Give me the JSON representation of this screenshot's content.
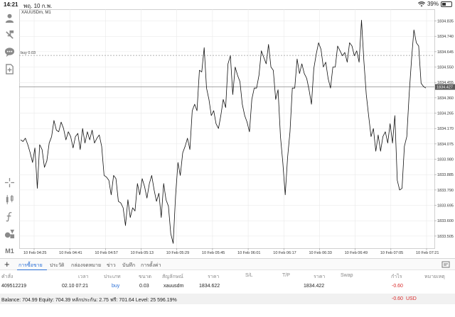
{
  "status_bar": {
    "time": "14:21",
    "date": "พฤ. 10 ก.พ.",
    "battery_percent": 39,
    "battery_label": "39%"
  },
  "toolbar": {
    "icons": [
      "account-icon",
      "trade-icon",
      "chat-icon",
      "new-order-icon",
      "crosshair-icon",
      "indicators-icon",
      "function-icon",
      "objects-icon",
      "timeframe-icon"
    ],
    "timeframe_label": "M1"
  },
  "chart": {
    "symbol_label": "XAUUSDm, M1",
    "position_label": "buy 0.03",
    "current_price_label": "1834.427",
    "colors": {
      "line": "#111111",
      "grid": "#e6e6e6",
      "bid_line": "#888888",
      "position_line": "#9a9a9a",
      "price_tag_bg": "#5a5a5a"
    }
  },
  "chart_data": {
    "type": "line",
    "title": "XAUUSDm, M1",
    "xlabel": "",
    "ylabel": "",
    "ylim": [
      1833.43,
      1834.89
    ],
    "x_ticks": [
      "10 Feb 04:25",
      "10 Feb 04:41",
      "10 Feb 04:57",
      "10 Feb 05:13",
      "10 Feb 05:29",
      "10 Feb 05:45",
      "10 Feb 06:01",
      "10 Feb 06:17",
      "10 Feb 06:33",
      "10 Feb 06:49",
      "10 Feb 07:05",
      "10 Feb 07:21"
    ],
    "y_ticks": [
      "1834.835",
      "1834.740",
      "1834.645",
      "1834.550",
      "1834.455",
      "1834.360",
      "1834.265",
      "1834.170",
      "1834.075",
      "1833.980",
      "1833.885",
      "1833.790",
      "1833.695",
      "1833.600",
      "1833.505"
    ],
    "bid_price": 1834.427,
    "position_price": 1834.622,
    "close": [
      1834.1,
      1834.09,
      1834.11,
      1834.07,
      1834.02,
      1833.96,
      1834.05,
      1833.8,
      1834.07,
      1834.04,
      1833.93,
      1833.97,
      1834.08,
      1834.12,
      1834.22,
      1834.16,
      1834.15,
      1834.21,
      1834.17,
      1834.1,
      1834.15,
      1834.12,
      1834.05,
      1834.12,
      1834.14,
      1834.04,
      1834.17,
      1834.08,
      1834.15,
      1834.1,
      1834.16,
      1834.08,
      1834.11,
      1834.13,
      1834.06,
      1833.88,
      1833.87,
      1833.85,
      1833.76,
      1833.88,
      1833.86,
      1833.72,
      1833.71,
      1833.68,
      1833.57,
      1833.73,
      1833.62,
      1833.68,
      1833.66,
      1833.83,
      1833.76,
      1833.86,
      1833.81,
      1833.74,
      1833.83,
      1833.88,
      1833.79,
      1833.72,
      1833.77,
      1833.62,
      1833.83,
      1833.73,
      1833.69,
      1833.52,
      1833.46,
      1833.75,
      1833.96,
      1833.88,
      1834.02,
      1834.06,
      1834.11,
      1834.04,
      1834.28,
      1834.32,
      1834.28,
      1834.53,
      1834.52,
      1834.67,
      1834.42,
      1834.35,
      1834.25,
      1834.28,
      1834.2,
      1834.17,
      1834.25,
      1834.35,
      1834.3,
      1834.57,
      1834.62,
      1834.38,
      1834.55,
      1834.5,
      1834.46,
      1834.32,
      1834.25,
      1834.21,
      1834.15,
      1834.35,
      1834.42,
      1834.42,
      1834.5,
      1834.65,
      1834.61,
      1834.57,
      1834.69,
      1834.55,
      1834.53,
      1834.35,
      1834.41,
      1834.12,
      1833.96,
      1833.76,
      1833.99,
      1834.15,
      1834.42,
      1834.42,
      1834.6,
      1834.51,
      1834.57,
      1834.51,
      1834.48,
      1834.41,
      1834.32,
      1834.54,
      1834.63,
      1834.7,
      1834.66,
      1834.55,
      1834.58,
      1834.48,
      1834.42,
      1834.55,
      1834.55,
      1834.68,
      1834.65,
      1834.62,
      1834.64,
      1834.58,
      1834.7,
      1834.68,
      1834.62,
      1834.65,
      1834.58,
      1834.84,
      1834.59,
      1834.38,
      1834.25,
      1834.12,
      1834.17,
      1834.03,
      1834.13,
      1834.03,
      1834.12,
      1834.15,
      1834.08,
      1834.2,
      1834.08,
      1834.25,
      1833.85,
      1833.79,
      1833.8,
      1834.06,
      1834.12,
      1834.38,
      1834.6,
      1834.78,
      1834.7,
      1834.68,
      1834.45,
      1834.43,
      1834.42
    ]
  },
  "tabs": {
    "items": [
      "การซื้อขาย",
      "ประวัติ",
      "กล่องจดหมาย",
      "ข่าว",
      "บันทึก",
      "การตั้งค่า"
    ]
  },
  "columns": {
    "headers": [
      "คำสั่ง",
      "เวลา",
      "ประเภท",
      "ขนาด",
      "สัญลักษณ์",
      "ราคา",
      "S/L",
      "T/P",
      "ราคา",
      "Swap",
      "กำไร",
      "หมายเหตุ"
    ]
  },
  "trade": {
    "order": "409512219",
    "time": "02.10 07:21",
    "type": "buy",
    "volume": "0.03",
    "symbol": "xauusdm",
    "open_price": "1834.622",
    "sl": "",
    "tp": "",
    "price": "1834.422",
    "swap": "",
    "profit": "-0.60",
    "comment": ""
  },
  "balance": {
    "summary": "Balance: 704.99 Equity: 704.39 หลักประกัน: 2.75 ฟรี: 701.64 Level: 25 596.19%",
    "profit": "-0.60",
    "currency": "USD"
  }
}
